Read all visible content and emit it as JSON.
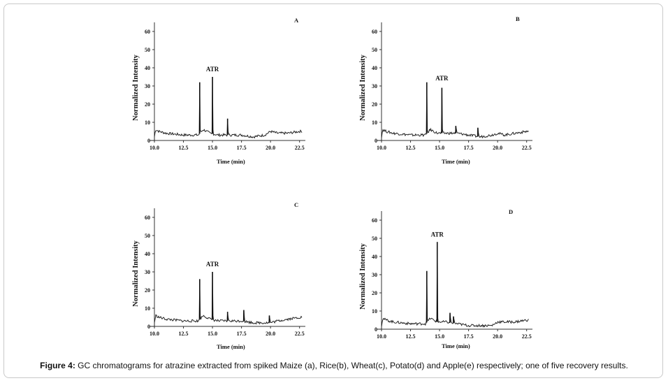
{
  "caption": {
    "label": "Figure 4:",
    "text": " GC chromatograms for atrazine extracted from spiked Maize (a), Rice(b), Wheat(c), Potato(d) and Apple(e) respectively; one of five recovery results."
  },
  "chart_data": [
    {
      "type": "line",
      "panel_label": "A",
      "xlabel": "Time (min)",
      "ylabel": "Normalized Intensity",
      "xlim": [
        10,
        23
      ],
      "ylim": [
        0,
        65
      ],
      "xticks": [
        "10.0",
        "12.5",
        "15.0",
        "17.5",
        "20.0",
        "22.5"
      ],
      "yticks": [
        "0",
        "10",
        "20",
        "30",
        "40",
        "50",
        "60"
      ],
      "annotation": {
        "text": "ATR",
        "x": 15.0,
        "y": 38
      },
      "baseline": [
        [
          10.0,
          2
        ],
        [
          10.1,
          6
        ],
        [
          10.4,
          5
        ],
        [
          11.0,
          4
        ],
        [
          12.5,
          3
        ],
        [
          13.8,
          3
        ],
        [
          14.2,
          6
        ],
        [
          14.8,
          4
        ],
        [
          15.5,
          3
        ],
        [
          16.5,
          3
        ],
        [
          17.5,
          3
        ],
        [
          18.5,
          2
        ],
        [
          19.5,
          3
        ],
        [
          20.0,
          5
        ],
        [
          20.6,
          4
        ],
        [
          21.5,
          4
        ],
        [
          22.5,
          5
        ]
      ],
      "peaks": [
        [
          13.9,
          32
        ],
        [
          15.0,
          35
        ],
        [
          16.3,
          12
        ]
      ]
    },
    {
      "type": "line",
      "panel_label": "B",
      "xlabel": "Time (min)",
      "ylabel": "Normalized Intensity",
      "xlim": [
        10,
        23
      ],
      "ylim": [
        0,
        65
      ],
      "xticks": [
        "10.0",
        "12.5",
        "15.0",
        "17.5",
        "20.0",
        "22.5"
      ],
      "yticks": [
        "0",
        "10",
        "20",
        "30",
        "40",
        "50",
        "60"
      ],
      "annotation": {
        "text": "ATR",
        "x": 15.2,
        "y": 33
      },
      "baseline": [
        [
          10.0,
          2
        ],
        [
          10.1,
          6
        ],
        [
          10.4,
          5
        ],
        [
          11.0,
          4
        ],
        [
          12.5,
          3
        ],
        [
          13.8,
          3
        ],
        [
          14.2,
          6
        ],
        [
          14.8,
          4
        ],
        [
          15.5,
          4
        ],
        [
          16.5,
          4
        ],
        [
          17.5,
          3
        ],
        [
          18.5,
          2
        ],
        [
          19.5,
          3
        ],
        [
          20.0,
          4
        ],
        [
          20.6,
          3
        ],
        [
          21.5,
          4
        ],
        [
          22.5,
          5
        ]
      ],
      "peaks": [
        [
          13.9,
          32
        ],
        [
          15.2,
          29
        ],
        [
          16.4,
          8
        ],
        [
          18.3,
          7
        ]
      ]
    },
    {
      "type": "line",
      "panel_label": "C",
      "xlabel": "Time (min)",
      "ylabel": "Normalized Intensity",
      "xlim": [
        10,
        23
      ],
      "ylim": [
        0,
        65
      ],
      "xticks": [
        "10.0",
        "12.5",
        "15.0",
        "17.5",
        "20.0",
        "22.5"
      ],
      "yticks": [
        "0",
        "10",
        "20",
        "30",
        "40",
        "50",
        "60"
      ],
      "annotation": {
        "text": "ATR",
        "x": 15.0,
        "y": 33
      },
      "baseline": [
        [
          10.0,
          2
        ],
        [
          10.1,
          6
        ],
        [
          10.4,
          5
        ],
        [
          11.0,
          4
        ],
        [
          12.5,
          3
        ],
        [
          13.8,
          3
        ],
        [
          14.2,
          6
        ],
        [
          14.8,
          4
        ],
        [
          15.5,
          3
        ],
        [
          16.5,
          3
        ],
        [
          17.5,
          3
        ],
        [
          18.5,
          2
        ],
        [
          19.5,
          2
        ],
        [
          20.0,
          2
        ],
        [
          20.6,
          3
        ],
        [
          21.5,
          4
        ],
        [
          22.5,
          5
        ]
      ],
      "peaks": [
        [
          13.9,
          26
        ],
        [
          15.0,
          30
        ],
        [
          16.3,
          8
        ],
        [
          17.7,
          9
        ],
        [
          19.9,
          6
        ]
      ]
    },
    {
      "type": "line",
      "panel_label": "D",
      "xlabel": "Time (min)",
      "ylabel": "Normalized Intensity",
      "xlim": [
        10,
        23
      ],
      "ylim": [
        0,
        65
      ],
      "xticks": [
        "10.0",
        "12.5",
        "15.0",
        "17.5",
        "20.0",
        "22.5"
      ],
      "yticks": [
        "0",
        "10",
        "20",
        "30",
        "40",
        "50",
        "60"
      ],
      "annotation": {
        "text": "ATR",
        "x": 14.8,
        "y": 51
      },
      "baseline": [
        [
          10.0,
          2
        ],
        [
          10.1,
          6
        ],
        [
          10.4,
          5
        ],
        [
          11.0,
          4
        ],
        [
          12.5,
          3
        ],
        [
          13.8,
          3
        ],
        [
          14.2,
          6
        ],
        [
          14.8,
          4
        ],
        [
          15.5,
          4
        ],
        [
          16.5,
          3
        ],
        [
          17.5,
          2
        ],
        [
          18.5,
          2
        ],
        [
          19.5,
          2
        ],
        [
          20.0,
          4
        ],
        [
          20.6,
          4
        ],
        [
          21.5,
          4
        ],
        [
          22.5,
          5
        ]
      ],
      "peaks": [
        [
          13.9,
          32
        ],
        [
          14.8,
          48
        ],
        [
          15.9,
          9
        ],
        [
          16.2,
          7
        ]
      ]
    }
  ]
}
